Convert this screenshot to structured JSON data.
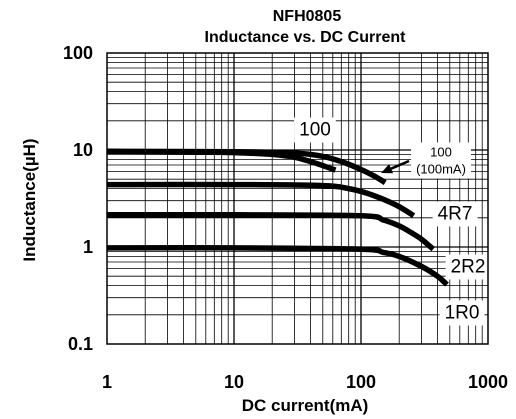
{
  "chart_data": {
    "type": "line",
    "title": "NFH0805",
    "subtitle": "Inductance vs. DC Current",
    "xlabel": "DC current(mA)",
    "ylabel": "Inductance(µH)",
    "xscale": "log",
    "yscale": "log",
    "xlim": [
      1,
      1000
    ],
    "ylim": [
      0.1,
      100
    ],
    "x_ticks": [
      {
        "value": 1,
        "label": "1"
      },
      {
        "value": 10,
        "label": "10"
      },
      {
        "value": 100,
        "label": "100"
      },
      {
        "value": 1000,
        "label": "1000"
      }
    ],
    "y_ticks": [
      {
        "value": 100,
        "label": "100"
      },
      {
        "value": 10,
        "label": "10"
      },
      {
        "value": 1,
        "label": "1"
      },
      {
        "value": 0.1,
        "label": "0.1"
      }
    ],
    "grid": true,
    "colors": {
      "line": "#000000",
      "grid": "#000000",
      "background": "#ffffff"
    },
    "series": [
      {
        "name": "100",
        "x": [
          1,
          5,
          10,
          20,
          30,
          40,
          50,
          63
        ],
        "y": [
          9.6,
          9.5,
          9.4,
          9.0,
          8.4,
          7.6,
          6.9,
          6.2
        ]
      },
      {
        "name": "100",
        "sublabel": "(100mA)",
        "x": [
          1,
          10,
          30,
          50,
          70,
          100,
          130,
          155
        ],
        "y": [
          9.7,
          9.6,
          9.3,
          8.6,
          7.6,
          6.3,
          5.3,
          4.6
        ]
      },
      {
        "name": "4R7",
        "x": [
          1,
          10,
          50,
          80,
          110,
          150,
          200,
          260
        ],
        "y": [
          4.4,
          4.4,
          4.3,
          4.0,
          3.6,
          3.1,
          2.6,
          2.1
        ]
      },
      {
        "name": "2R2",
        "x": [
          1,
          10,
          100,
          150,
          200,
          250,
          300,
          370
        ],
        "y": [
          2.15,
          2.15,
          2.1,
          1.9,
          1.65,
          1.4,
          1.2,
          0.95
        ]
      },
      {
        "name": "1R0",
        "x": [
          1,
          10,
          100,
          150,
          200,
          300,
          400,
          475
        ],
        "y": [
          0.98,
          0.98,
          0.95,
          0.88,
          0.8,
          0.63,
          0.5,
          0.41
        ]
      }
    ]
  }
}
